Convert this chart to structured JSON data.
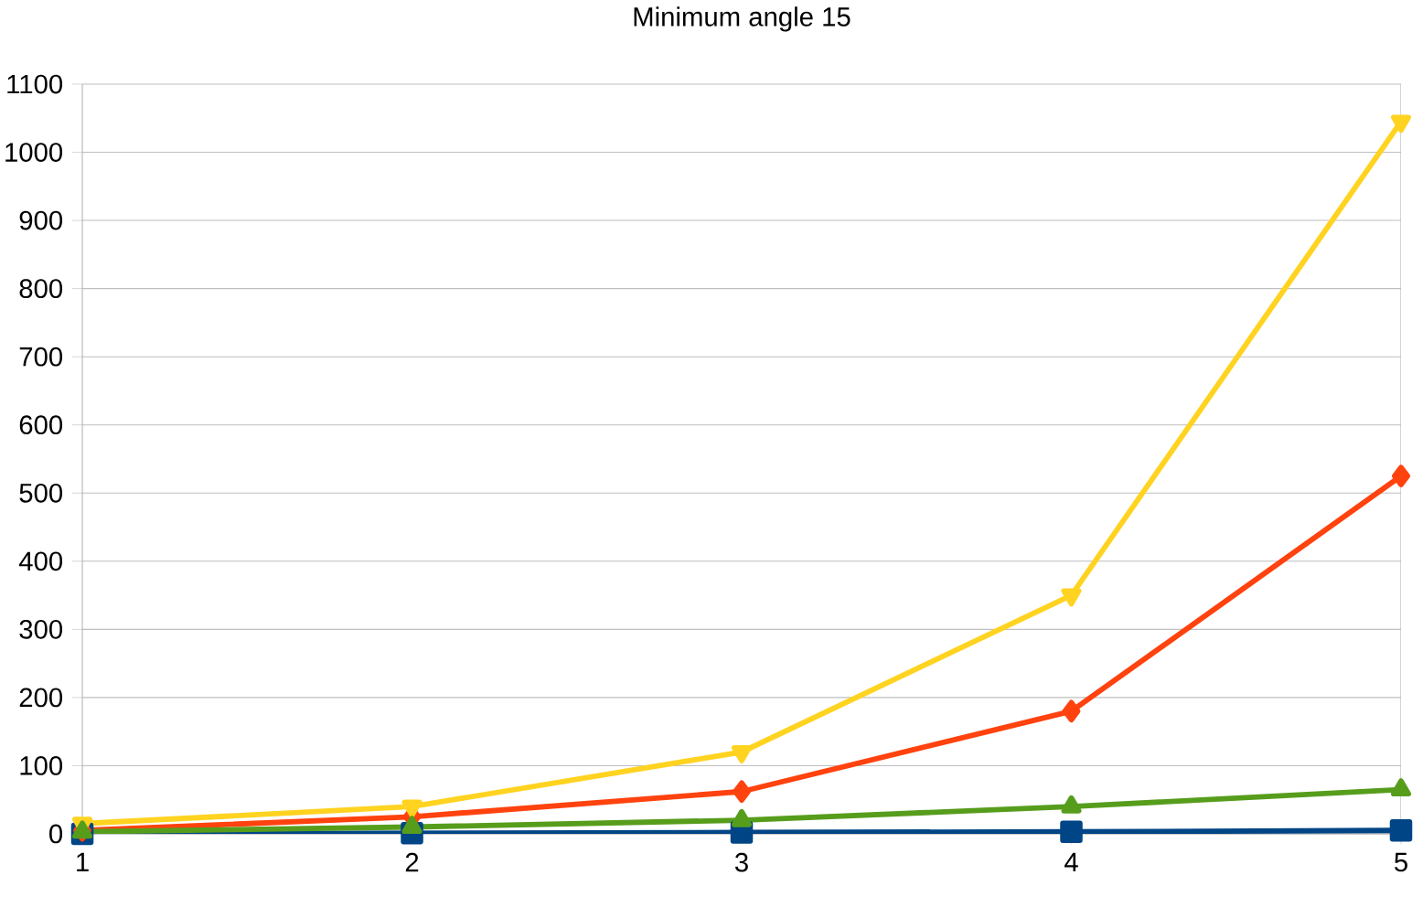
{
  "chart_data": {
    "type": "line",
    "title": "Minimum angle 15",
    "x": [
      1,
      2,
      3,
      4,
      5
    ],
    "series": [
      {
        "color": "#004586",
        "marker": "square",
        "values": [
          0,
          1,
          2,
          3,
          5
        ]
      },
      {
        "color": "#ff420e",
        "marker": "diamond",
        "values": [
          5,
          25,
          62,
          180,
          525
        ]
      },
      {
        "color": "#ffd320",
        "marker": "triangle-down",
        "values": [
          15,
          40,
          120,
          350,
          1045
        ]
      },
      {
        "color": "#579d1c",
        "marker": "triangle",
        "values": [
          3,
          10,
          20,
          40,
          65
        ]
      }
    ],
    "xlim": [
      1,
      5
    ],
    "xticks": [
      1,
      2,
      3,
      4,
      5
    ],
    "ylim": [
      0,
      1100
    ],
    "yticks": [
      0,
      100,
      200,
      300,
      400,
      500,
      600,
      700,
      800,
      900,
      1000,
      1100
    ],
    "grid": "y"
  }
}
